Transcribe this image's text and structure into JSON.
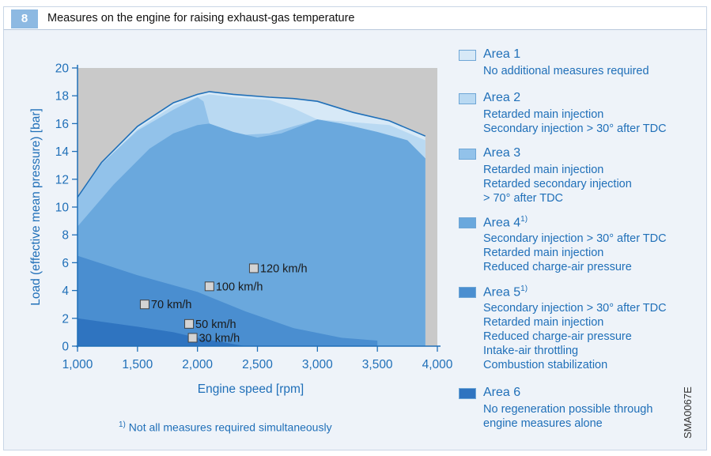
{
  "figure": {
    "number": "8",
    "title": "Measures on the engine for raising exhaust-gas temperature"
  },
  "colors": {
    "plot_background": "#c9c9c9",
    "area1": "#d7e9f7",
    "area2": "#b9d9f2",
    "area3": "#92c2ea",
    "area4": "#6aa8dd",
    "area5": "#4a8ed0",
    "area6": "#2f74c0",
    "text": "#1f6fb8"
  },
  "chart_data": {
    "type": "area",
    "xlabel": "Engine speed [rpm]",
    "ylabel": "Load (effective mean pressure) [bar]",
    "xlim": [
      1000,
      4000
    ],
    "ylim": [
      0,
      20
    ],
    "x_ticks": [
      1000,
      1500,
      2000,
      2500,
      3000,
      3500,
      4000
    ],
    "x_tick_labels": [
      "1,000",
      "1,500",
      "2,000",
      "2,500",
      "3,000",
      "3,500",
      "4,000"
    ],
    "y_ticks": [
      0,
      2,
      4,
      6,
      8,
      10,
      12,
      14,
      16,
      18,
      20
    ],
    "y_tick_labels": [
      "0",
      "2",
      "4",
      "6",
      "8",
      "10",
      "12",
      "14",
      "16",
      "18",
      "20"
    ],
    "grid": false,
    "areas": [
      {
        "name": "Area 1",
        "color": "#d7e9f7",
        "points": [
          [
            1000,
            10.7
          ],
          [
            1200,
            13.2
          ],
          [
            1500,
            15.8
          ],
          [
            1800,
            17.5
          ],
          [
            2000,
            18.1
          ],
          [
            2100,
            18.3
          ],
          [
            2300,
            18.1
          ],
          [
            2600,
            17.9
          ],
          [
            2800,
            17.8
          ],
          [
            3000,
            17.6
          ],
          [
            3300,
            16.8
          ],
          [
            3600,
            16.2
          ],
          [
            3900,
            15.1
          ],
          [
            3900,
            0
          ],
          [
            1000,
            0
          ]
        ]
      },
      {
        "name": "Area 2",
        "color": "#b9d9f2",
        "points": [
          [
            1000,
            10.6
          ],
          [
            1200,
            13.1
          ],
          [
            1500,
            15.6
          ],
          [
            1800,
            17.3
          ],
          [
            2000,
            17.9
          ],
          [
            2100,
            18.1
          ],
          [
            2300,
            17.9
          ],
          [
            2600,
            17.7
          ],
          [
            2800,
            17.1
          ],
          [
            3000,
            16.3
          ],
          [
            3300,
            16.1
          ],
          [
            3600,
            15.9
          ],
          [
            3900,
            14.8
          ],
          [
            3900,
            0
          ],
          [
            1000,
            0
          ]
        ]
      },
      {
        "name": "Area 3",
        "color": "#92c2ea",
        "points": [
          [
            1000,
            10.6
          ],
          [
            1200,
            13.1
          ],
          [
            1500,
            15.5
          ],
          [
            1800,
            17.0
          ],
          [
            2000,
            17.9
          ],
          [
            2050,
            17.6
          ],
          [
            2100,
            16.0
          ],
          [
            2200,
            15.4
          ],
          [
            2400,
            15.2
          ],
          [
            2600,
            15.3
          ],
          [
            2800,
            15.8
          ],
          [
            3000,
            16.3
          ],
          [
            3200,
            16.0
          ],
          [
            3500,
            15.4
          ],
          [
            3750,
            14.8
          ],
          [
            3900,
            13.5
          ],
          [
            3900,
            0
          ],
          [
            1000,
            0
          ]
        ]
      },
      {
        "name": "Area 4",
        "color": "#6aa8dd",
        "points": [
          [
            1000,
            8.6
          ],
          [
            1300,
            11.6
          ],
          [
            1600,
            14.2
          ],
          [
            1800,
            15.3
          ],
          [
            2000,
            15.9
          ],
          [
            2100,
            16.0
          ],
          [
            2300,
            15.4
          ],
          [
            2500,
            15.0
          ],
          [
            2700,
            15.3
          ],
          [
            3000,
            16.3
          ],
          [
            3200,
            16.0
          ],
          [
            3500,
            15.4
          ],
          [
            3750,
            14.8
          ],
          [
            3900,
            13.5
          ],
          [
            3900,
            0
          ],
          [
            1000,
            0
          ]
        ]
      },
      {
        "name": "Area 5",
        "color": "#4a8ed0",
        "points": [
          [
            1000,
            6.5
          ],
          [
            1500,
            5.1
          ],
          [
            2000,
            3.9
          ],
          [
            2400,
            2.5
          ],
          [
            2800,
            1.3
          ],
          [
            3200,
            0.6
          ],
          [
            3500,
            0.4
          ],
          [
            3500,
            0
          ],
          [
            1000,
            0
          ]
        ]
      },
      {
        "name": "Area 6",
        "color": "#2f74c0",
        "points": [
          [
            1000,
            2.0
          ],
          [
            1500,
            1.4
          ],
          [
            1800,
            1.0
          ],
          [
            2000,
            0.6
          ],
          [
            2200,
            0.3
          ],
          [
            2400,
            0
          ],
          [
            1000,
            0
          ]
        ]
      }
    ],
    "annotations": [
      {
        "label": "120 km/h",
        "x": 2470,
        "y": 5.6
      },
      {
        "label": "100 km/h",
        "x": 2100,
        "y": 4.3
      },
      {
        "label": "70 km/h",
        "x": 1560,
        "y": 3.0
      },
      {
        "label": "50 km/h",
        "x": 1930,
        "y": 1.6
      },
      {
        "label": "30 km/h",
        "x": 1960,
        "y": 0.6
      }
    ]
  },
  "legend": [
    {
      "name": "Area 1",
      "sup": "",
      "color": "#d7e9f7",
      "desc": [
        "No additional measures required"
      ]
    },
    {
      "name": "Area 2",
      "sup": "",
      "color": "#b9d9f2",
      "desc": [
        "Retarded main injection",
        "Secondary injection > 30° after TDC"
      ]
    },
    {
      "name": "Area 3",
      "sup": "",
      "color": "#92c2ea",
      "desc": [
        "Retarded main injection",
        "Retarded secondary injection",
        "> 70° after TDC"
      ]
    },
    {
      "name": "Area 4",
      "sup": "1)",
      "color": "#6aa8dd",
      "desc": [
        "Secondary injection > 30° after TDC",
        "Retarded main injection",
        "Reduced charge-air pressure"
      ]
    },
    {
      "name": "Area 5",
      "sup": "1)",
      "color": "#4a8ed0",
      "desc": [
        "Secondary injection > 30° after TDC",
        "Retarded main injection",
        "Reduced charge-air pressure",
        "Intake-air throttling",
        "Combustion stabilization"
      ]
    },
    {
      "name": "Area 6",
      "sup": "",
      "color": "#2f74c0",
      "desc": [
        "No regeneration possible through",
        "engine measures alone"
      ]
    }
  ],
  "footnote": {
    "mark": "1)",
    "text": "Not all measures required simultaneously"
  },
  "image_code": "SMA0067E"
}
